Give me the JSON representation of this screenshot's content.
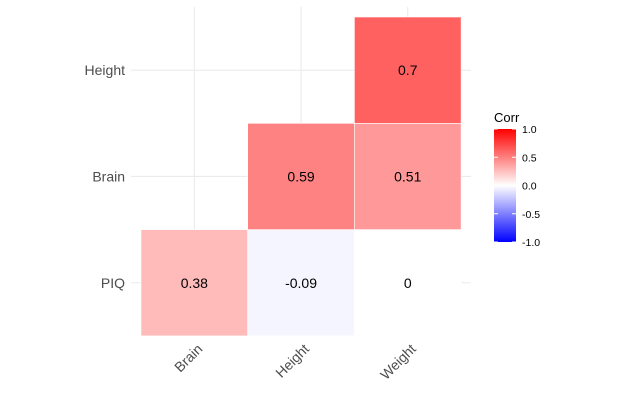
{
  "chart_data": {
    "type": "heatmap",
    "title": "",
    "xlabel": "",
    "ylabel": "",
    "x_categories": [
      "Brain",
      "Height",
      "Weight"
    ],
    "y_categories": [
      "PIQ",
      "Brain",
      "Height"
    ],
    "cells": [
      {
        "x": "Brain",
        "y": "PIQ",
        "value": 0.38,
        "label": "0.38"
      },
      {
        "x": "Height",
        "y": "PIQ",
        "value": -0.09,
        "label": "-0.09"
      },
      {
        "x": "Weight",
        "y": "PIQ",
        "value": 0,
        "label": "0"
      },
      {
        "x": "Height",
        "y": "Brain",
        "value": 0.59,
        "label": "0.59"
      },
      {
        "x": "Weight",
        "y": "Brain",
        "value": 0.51,
        "label": "0.51"
      },
      {
        "x": "Weight",
        "y": "Height",
        "value": 0.7,
        "label": "0.7"
      }
    ],
    "legend": {
      "title": "Corr",
      "placement": "right",
      "range": [
        -1,
        1
      ],
      "ticks": [
        {
          "value": 1.0,
          "label": "1.0"
        },
        {
          "value": 0.5,
          "label": "0.5"
        },
        {
          "value": 0.0,
          "label": "0.0"
        },
        {
          "value": -0.5,
          "label": "-0.5"
        },
        {
          "value": -1.0,
          "label": "-1.0"
        }
      ]
    },
    "colors": {
      "low": "#0000ff",
      "mid": "#ffffff",
      "high": "#ff0000",
      "grid": "#ebebeb",
      "tick_text": "#4d4d4d"
    },
    "grid": true,
    "x_tick_rotation": "45deg"
  }
}
